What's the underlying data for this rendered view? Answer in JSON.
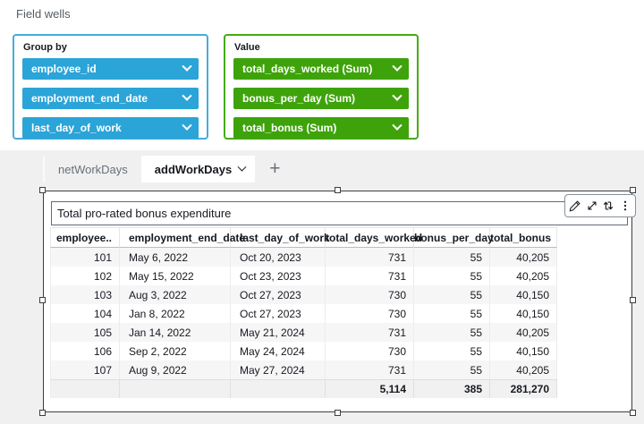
{
  "field_wells": {
    "header": "Field wells",
    "group_by": {
      "label": "Group by",
      "pill_color": "#2ba4d8",
      "border_color": "#44acdc",
      "fields": [
        "employee_id",
        "employment_end_date",
        "last_day_of_work"
      ]
    },
    "value": {
      "label": "Value",
      "pill_color": "#3ea30a",
      "border_color": "#46ab10",
      "fields": [
        "total_days_worked (Sum)",
        "bonus_per_day (Sum)",
        "total_bonus (Sum)"
      ]
    }
  },
  "sheet_tabs": {
    "tabs": [
      {
        "label": "netWorkDays",
        "active": false
      },
      {
        "label": "addWorkDays",
        "active": true
      }
    ],
    "add_label": "+"
  },
  "visual": {
    "title": "Total pro-rated bonus expenditure",
    "toolbar": [
      {
        "icon": "edit-pencil-icon",
        "label": "Edit"
      },
      {
        "icon": "maximize-icon",
        "label": "Maximize"
      },
      {
        "icon": "swap-arrows-icon",
        "label": "Swap"
      },
      {
        "icon": "menu-kebab-icon",
        "label": "Menu options"
      }
    ],
    "table": {
      "columns": [
        {
          "label": "employee..",
          "align": "right",
          "width": 78
        },
        {
          "label": "employment_end_date",
          "align": "left",
          "width": 124
        },
        {
          "label": "last_day_of_work",
          "align": "left",
          "width": 106
        },
        {
          "label": "total_days_worked",
          "align": "right",
          "width": 99
        },
        {
          "label": "bonus_per_day",
          "align": "right",
          "width": 85
        },
        {
          "label": "total_bonus",
          "align": "right",
          "width": 75
        }
      ],
      "rows": [
        [
          "101",
          "May 6, 2022",
          "Oct 20, 2023",
          "731",
          "55",
          "40,205"
        ],
        [
          "102",
          "May 15, 2022",
          "Oct 23, 2023",
          "731",
          "55",
          "40,205"
        ],
        [
          "103",
          "Aug 3, 2022",
          "Oct 27, 2023",
          "730",
          "55",
          "40,150"
        ],
        [
          "104",
          "Jan 8, 2022",
          "Oct 27, 2023",
          "730",
          "55",
          "40,150"
        ],
        [
          "105",
          "Jan 14, 2022",
          "May 21, 2024",
          "731",
          "55",
          "40,205"
        ],
        [
          "106",
          "Sep 2, 2022",
          "May 24, 2024",
          "730",
          "55",
          "40,150"
        ],
        [
          "107",
          "Aug 9, 2022",
          "May 27, 2024",
          "731",
          "55",
          "40,205"
        ]
      ],
      "totals": [
        "",
        "",
        "",
        "5,114",
        "385",
        "281,270"
      ]
    }
  },
  "colors": {
    "canvas_bg": "#f0f0f1",
    "selection_border": "#3a3f44",
    "text_dark": "#16191f",
    "text_gray": "#687078"
  }
}
